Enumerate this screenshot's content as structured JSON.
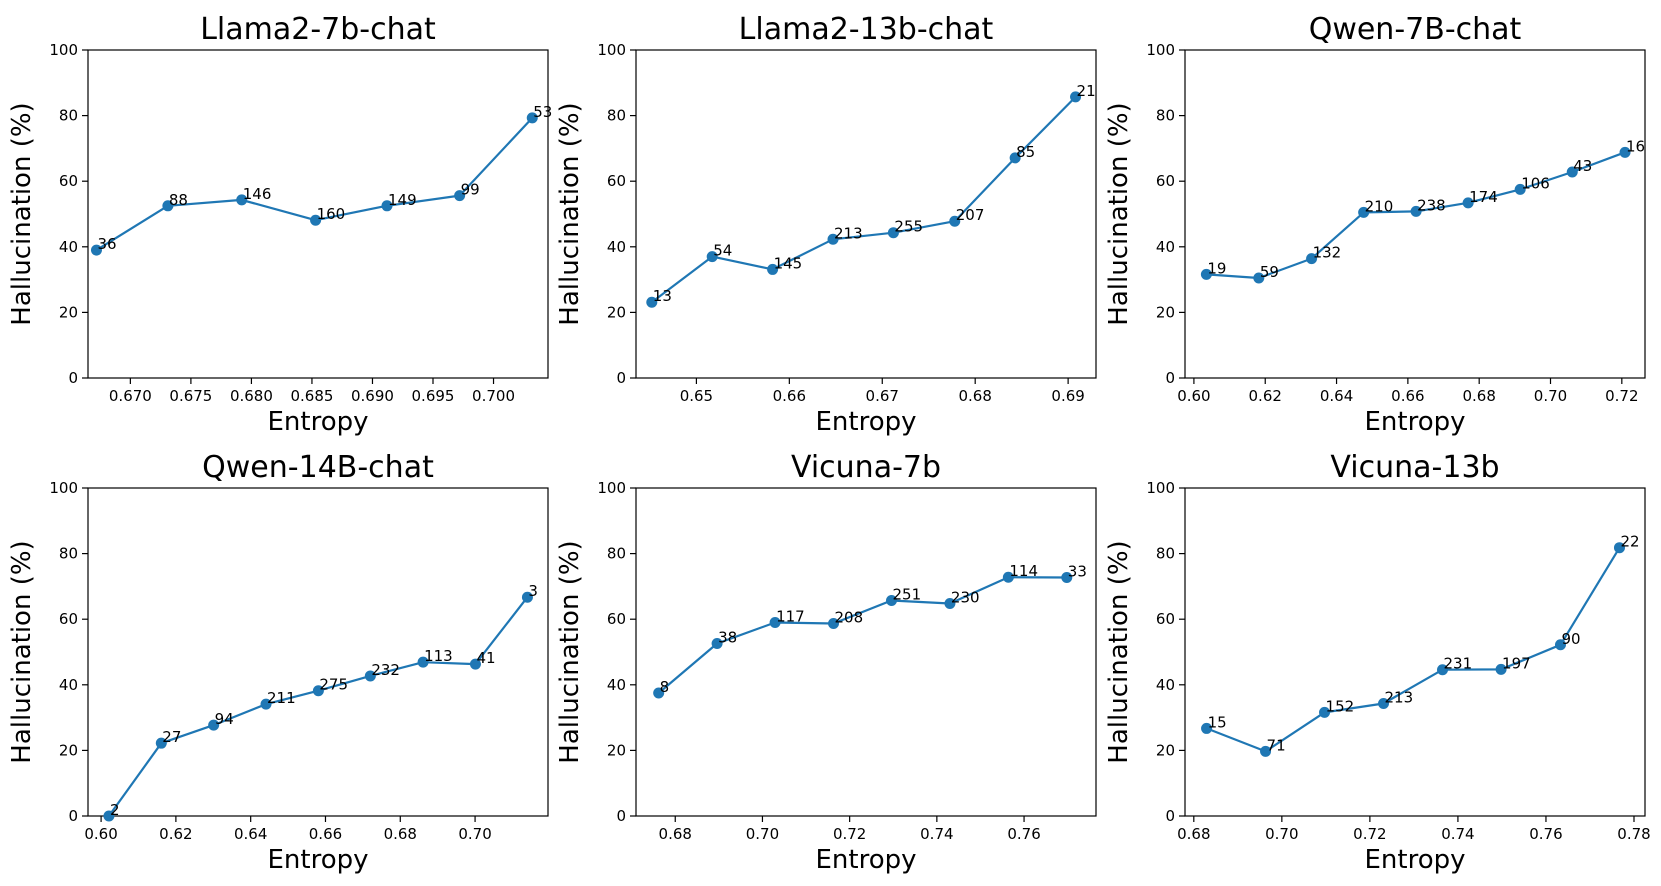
{
  "colors": {
    "series": "#1f77b4",
    "axis": "#000000",
    "background": "#ffffff"
  },
  "chart_data": [
    {
      "type": "line",
      "title": "Llama2-7b-chat",
      "xlabel": "Entropy",
      "ylabel": "Hallucination (%)",
      "xlim": [
        0.6665,
        0.7045
      ],
      "ylim": [
        0,
        100
      ],
      "xticks": [
        0.67,
        0.675,
        0.68,
        0.685,
        0.69,
        0.695,
        0.7
      ],
      "xtick_labels": [
        "0.670",
        "0.675",
        "0.680",
        "0.685",
        "0.690",
        "0.695",
        "0.700"
      ],
      "yticks": [
        0,
        20,
        40,
        60,
        80,
        100
      ],
      "ytick_labels": [
        "0",
        "20",
        "40",
        "60",
        "80",
        "100"
      ],
      "x": [
        0.6672,
        0.6731,
        0.6792,
        0.6853,
        0.6912,
        0.6972,
        0.7032
      ],
      "y": [
        39,
        52.5,
        54.3,
        48.1,
        52.5,
        55.6,
        79.3
      ],
      "labels": [
        "36",
        "88",
        "146",
        "160",
        "149",
        "99",
        "53"
      ]
    },
    {
      "type": "line",
      "title": "Llama2-13b-chat",
      "xlabel": "Entropy",
      "ylabel": "Hallucination (%)",
      "xlim": [
        0.6435,
        0.693
      ],
      "ylim": [
        0,
        100
      ],
      "xticks": [
        0.65,
        0.66,
        0.67,
        0.68,
        0.69
      ],
      "xtick_labels": [
        "0.65",
        "0.66",
        "0.67",
        "0.68",
        "0.69"
      ],
      "yticks": [
        0,
        20,
        40,
        60,
        80,
        100
      ],
      "ytick_labels": [
        "0",
        "20",
        "40",
        "60",
        "80",
        "100"
      ],
      "x": [
        0.6452,
        0.6517,
        0.6582,
        0.6647,
        0.6712,
        0.6778,
        0.6843,
        0.6908
      ],
      "y": [
        23.1,
        37,
        33.1,
        42.3,
        44.3,
        47.8,
        67.1,
        85.7
      ],
      "labels": [
        "13",
        "54",
        "145",
        "213",
        "255",
        "207",
        "85",
        "21"
      ]
    },
    {
      "type": "line",
      "title": "Qwen-7B-chat",
      "xlabel": "Entropy",
      "ylabel": "Hallucination (%)",
      "xlim": [
        0.5975,
        0.7265
      ],
      "ylim": [
        0,
        100
      ],
      "xticks": [
        0.6,
        0.62,
        0.64,
        0.66,
        0.68,
        0.7,
        0.72
      ],
      "xtick_labels": [
        "0.60",
        "0.62",
        "0.64",
        "0.66",
        "0.68",
        "0.70",
        "0.72"
      ],
      "yticks": [
        0,
        20,
        40,
        60,
        80,
        100
      ],
      "ytick_labels": [
        "0",
        "20",
        "40",
        "60",
        "80",
        "100"
      ],
      "x": [
        0.6035,
        0.6182,
        0.633,
        0.6476,
        0.6623,
        0.6769,
        0.6915,
        0.7061,
        0.7209
      ],
      "y": [
        31.6,
        30.5,
        36.4,
        50.5,
        50.8,
        53.4,
        57.5,
        62.8,
        68.8
      ],
      "labels": [
        "19",
        "59",
        "132",
        "210",
        "238",
        "174",
        "106",
        "43",
        "16"
      ]
    },
    {
      "type": "line",
      "title": "Qwen-14B-chat",
      "xlabel": "Entropy",
      "ylabel": "Hallucination (%)",
      "xlim": [
        0.5965,
        0.7195
      ],
      "ylim": [
        0,
        100
      ],
      "xticks": [
        0.6,
        0.62,
        0.64,
        0.66,
        0.68,
        0.7
      ],
      "xtick_labels": [
        "0.60",
        "0.62",
        "0.64",
        "0.66",
        "0.68",
        "0.70"
      ],
      "yticks": [
        0,
        20,
        40,
        60,
        80,
        100
      ],
      "ytick_labels": [
        "0",
        "20",
        "40",
        "60",
        "80",
        "100"
      ],
      "x": [
        0.6021,
        0.6161,
        0.6301,
        0.6441,
        0.6581,
        0.672,
        0.6861,
        0.7001,
        0.714
      ],
      "y": [
        0,
        22.2,
        27.7,
        34.1,
        38.2,
        42.7,
        46.9,
        46.3,
        66.7
      ],
      "labels": [
        "2",
        "27",
        "94",
        "211",
        "275",
        "232",
        "113",
        "41",
        "3"
      ]
    },
    {
      "type": "line",
      "title": "Vicuna-7b",
      "xlabel": "Entropy",
      "ylabel": "Hallucination (%)",
      "xlim": [
        0.671,
        0.7765
      ],
      "ylim": [
        0,
        100
      ],
      "xticks": [
        0.68,
        0.7,
        0.72,
        0.74,
        0.76
      ],
      "xtick_labels": [
        "0.68",
        "0.70",
        "0.72",
        "0.74",
        "0.76"
      ],
      "yticks": [
        0,
        20,
        40,
        60,
        80,
        100
      ],
      "ytick_labels": [
        "0",
        "20",
        "40",
        "60",
        "80",
        "100"
      ],
      "x": [
        0.6762,
        0.6896,
        0.7029,
        0.7163,
        0.7296,
        0.743,
        0.7564,
        0.7698
      ],
      "y": [
        37.5,
        52.6,
        59,
        58.7,
        65.7,
        64.8,
        72.8,
        72.7
      ],
      "labels": [
        "8",
        "38",
        "117",
        "208",
        "251",
        "230",
        "114",
        "33"
      ]
    },
    {
      "type": "line",
      "title": "Vicuna-13b",
      "xlabel": "Entropy",
      "ylabel": "Hallucination (%)",
      "xlim": [
        0.678,
        0.7825
      ],
      "ylim": [
        0,
        100
      ],
      "xticks": [
        0.68,
        0.7,
        0.72,
        0.74,
        0.76,
        0.78
      ],
      "xtick_labels": [
        "0.68",
        "0.70",
        "0.72",
        "0.74",
        "0.76",
        "0.78"
      ],
      "yticks": [
        0,
        20,
        40,
        60,
        80,
        100
      ],
      "ytick_labels": [
        "0",
        "20",
        "40",
        "60",
        "80",
        "100"
      ],
      "x": [
        0.6829,
        0.6963,
        0.7097,
        0.7231,
        0.7365,
        0.7498,
        0.7633,
        0.7767
      ],
      "y": [
        26.7,
        19.7,
        31.6,
        34.3,
        44.6,
        44.7,
        52.2,
        81.8
      ],
      "labels": [
        "15",
        "71",
        "152",
        "213",
        "231",
        "197",
        "90",
        "22"
      ]
    }
  ]
}
